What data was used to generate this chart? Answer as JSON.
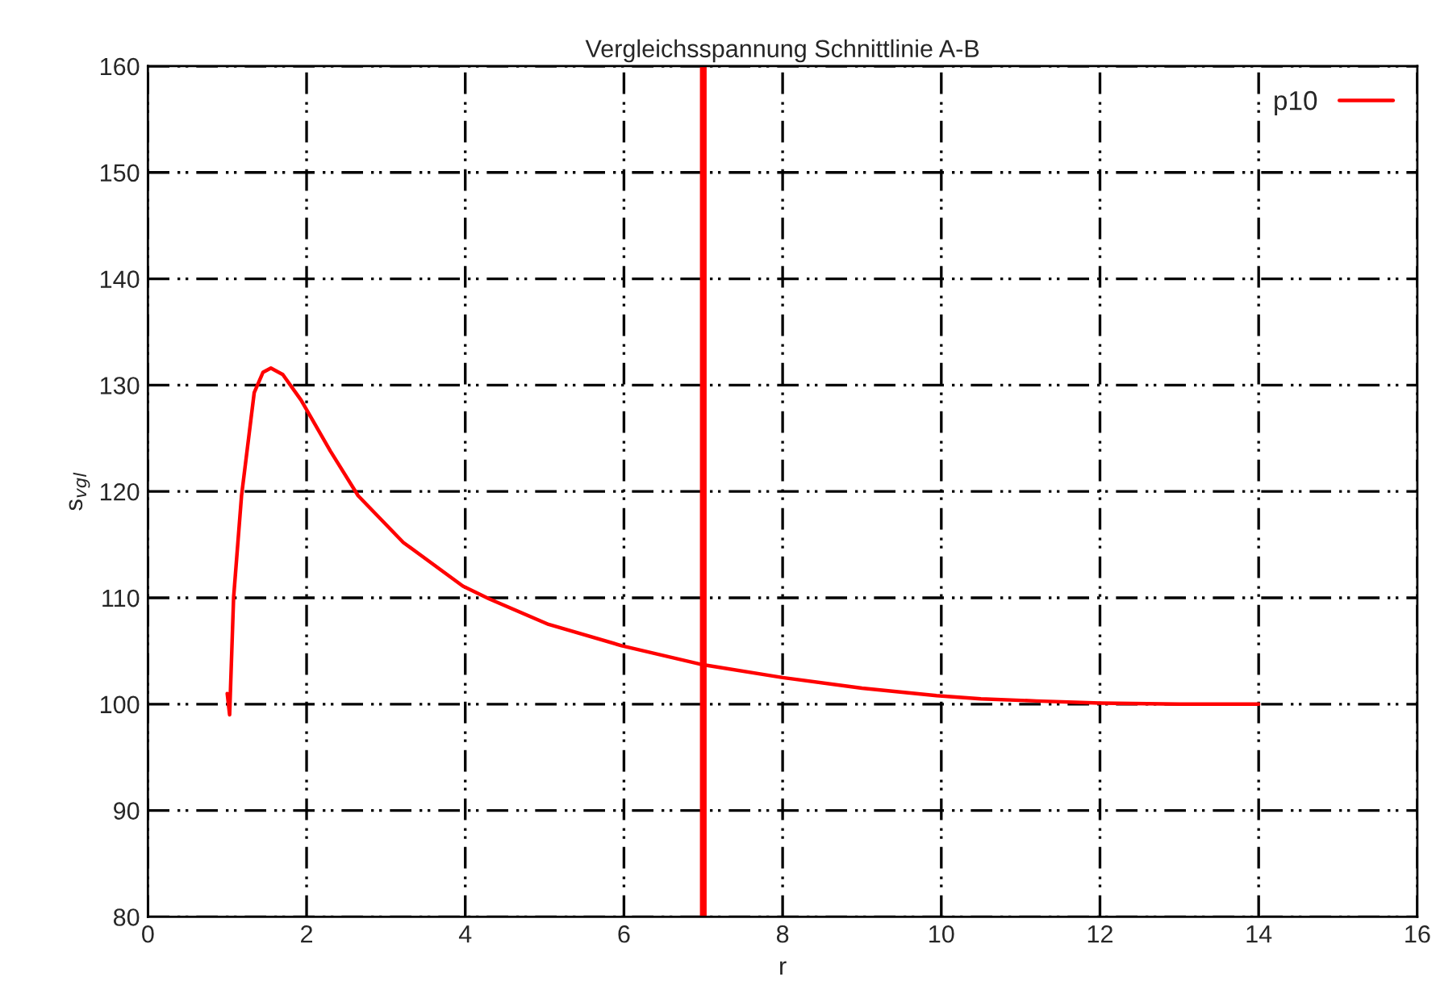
{
  "chart_data": {
    "type": "line",
    "title": "Vergleichsspannung Schnittlinie A-B",
    "xlabel": "r",
    "ylabel": "s$_{vgl}$",
    "series": [
      {
        "name": "p10",
        "color": "#ff0000",
        "x": [
          1.0,
          1.03,
          1.08,
          1.18,
          1.34,
          1.45,
          1.55,
          1.7,
          1.93,
          2.3,
          2.65,
          3.22,
          3.97,
          4.3,
          5.05,
          5.97,
          7.0,
          8.0,
          9.0,
          9.94,
          10.5,
          11.2,
          12.0,
          13.0,
          14.0
        ],
        "values": [
          101,
          99,
          110,
          119.6,
          129.3,
          131.2,
          131.6,
          131,
          128.6,
          123.8,
          119.6,
          115.2,
          111.1,
          109.9,
          107.5,
          105.5,
          103.7,
          102.5,
          101.5,
          100.8,
          100.5,
          100.3,
          100.1,
          100,
          100
        ]
      }
    ],
    "ref_lines": [
      {
        "axis": "x",
        "value": 7,
        "color": "#ff0000"
      }
    ],
    "xlim": [
      0,
      16
    ],
    "xticks": [
      0,
      2,
      4,
      6,
      8,
      10,
      12,
      14,
      16
    ],
    "ylim": [
      80,
      160
    ],
    "yticks": [
      80,
      90,
      100,
      110,
      120,
      130,
      140,
      150,
      160
    ],
    "grid": true,
    "legend": "top right"
  }
}
